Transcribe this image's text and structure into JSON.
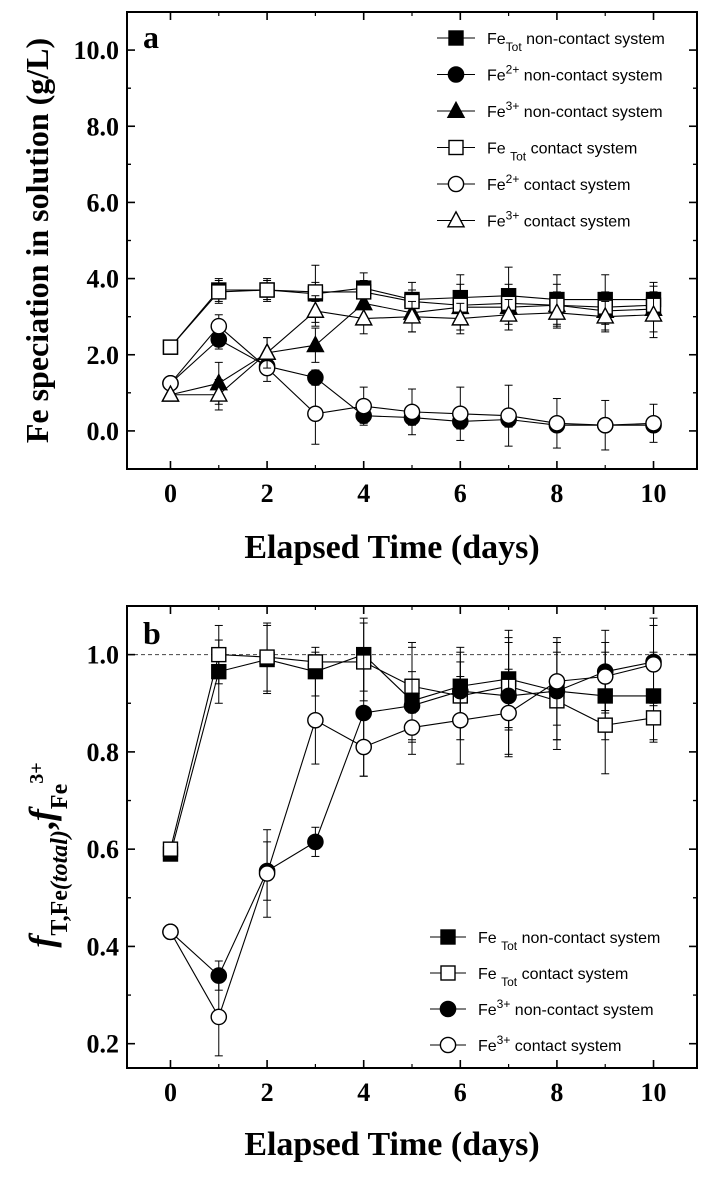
{
  "chart_data": [
    {
      "type": "line",
      "panel_label": "a",
      "xlabel": "Elapsed Time (days)",
      "ylabel": "Fe speciation in solution (g/L)",
      "xlim": [
        -0.9,
        10.9
      ],
      "ylim": [
        -1.0,
        11.0
      ],
      "xticks": [
        0,
        2,
        4,
        6,
        8,
        10
      ],
      "xtick_labels": [
        "0",
        "2",
        "4",
        "6",
        "8",
        "10"
      ],
      "yticks": [
        0,
        2,
        4,
        6,
        8,
        10
      ],
      "ytick_labels": [
        "0.0",
        "2.0",
        "4.0",
        "6.0",
        "8.0",
        "10.0"
      ],
      "legend_position": "top-right",
      "series": [
        {
          "name": "Fe Tot non-contact system",
          "label_parts": [
            "Fe",
            "Tot",
            "non-contact system"
          ],
          "marker": "square",
          "filled": true,
          "x": [
            0,
            1,
            2,
            3,
            4,
            5,
            6,
            7,
            8,
            9,
            10
          ],
          "y": [
            2.2,
            3.7,
            3.7,
            3.6,
            3.75,
            3.45,
            3.5,
            3.55,
            3.45,
            3.45,
            3.45
          ],
          "err": [
            0.0,
            0.3,
            0.3,
            0.75,
            0.4,
            0.45,
            0.6,
            0.75,
            0.65,
            0.65,
            0.45
          ]
        },
        {
          "name": "Fe 2+ non-contact system",
          "label_parts": [
            "Fe",
            "2+",
            "non-contact system"
          ],
          "marker": "circle",
          "filled": true,
          "x": [
            0,
            1,
            2,
            3,
            4,
            5,
            6,
            7,
            8,
            9,
            10
          ],
          "y": [
            1.25,
            2.4,
            1.7,
            1.4,
            0.4,
            0.35,
            0.25,
            0.3,
            0.15,
            0.15,
            0.15
          ],
          "err": [
            0.0,
            0.25,
            0.2,
            0.2,
            0.2,
            0.2,
            0.2,
            0.2,
            0.15,
            0.15,
            0.15
          ]
        },
        {
          "name": "Fe 3+ non-contact system",
          "label_parts": [
            "Fe",
            "3+",
            "non-contact system"
          ],
          "marker": "triangle",
          "filled": true,
          "x": [
            0,
            1,
            2,
            3,
            4,
            5,
            6,
            7,
            8,
            9,
            10
          ],
          "y": [
            0.95,
            1.25,
            2.05,
            2.25,
            3.35,
            3.1,
            3.25,
            3.25,
            3.3,
            3.15,
            3.2
          ],
          "err": [
            0.0,
            0.55,
            0.4,
            0.45,
            0.45,
            0.5,
            0.6,
            0.6,
            0.55,
            0.5,
            0.6
          ]
        },
        {
          "name": "Fe Tot contact system",
          "label_parts": [
            "Fe ",
            "Tot",
            "contact system"
          ],
          "marker": "square",
          "filled": false,
          "x": [
            0,
            1,
            2,
            3,
            4,
            5,
            6,
            7,
            8,
            9,
            10
          ],
          "y": [
            2.2,
            3.65,
            3.7,
            3.65,
            3.65,
            3.4,
            3.3,
            3.35,
            3.3,
            3.25,
            3.3
          ],
          "err": [
            0.0,
            0.3,
            0.25,
            0.25,
            0.3,
            0.3,
            0.35,
            0.35,
            0.35,
            0.35,
            0.35
          ]
        },
        {
          "name": "Fe 2+ contact system",
          "label_parts": [
            "Fe",
            "2+",
            "contact system"
          ],
          "marker": "circle",
          "filled": false,
          "x": [
            0,
            1,
            2,
            3,
            4,
            5,
            6,
            7,
            8,
            9,
            10
          ],
          "y": [
            1.25,
            2.75,
            1.65,
            0.45,
            0.65,
            0.5,
            0.45,
            0.4,
            0.2,
            0.15,
            0.2
          ],
          "err": [
            0.0,
            0.3,
            0.35,
            0.8,
            0.5,
            0.6,
            0.7,
            0.8,
            0.65,
            0.65,
            0.5
          ]
        },
        {
          "name": "Fe 3+ contact system",
          "label_parts": [
            "Fe",
            "3+",
            "contact system"
          ],
          "marker": "triangle",
          "filled": false,
          "x": [
            0,
            1,
            2,
            3,
            4,
            5,
            6,
            7,
            8,
            9,
            10
          ],
          "y": [
            0.95,
            0.95,
            2.05,
            3.15,
            2.95,
            3.0,
            2.95,
            3.05,
            3.1,
            3.0,
            3.05
          ],
          "err": [
            0.0,
            0.4,
            0.4,
            0.4,
            0.4,
            0.4,
            0.4,
            0.4,
            0.4,
            0.4,
            0.6
          ]
        }
      ]
    },
    {
      "type": "line",
      "panel_label": "b",
      "xlabel": "Elapsed Time (days)",
      "ylabel": "f T,Fe (total) , f Fe 3+",
      "ylabel_parts": {
        "f1": "f",
        "sub1": "T,Fe",
        "sub1_italic": "(total)",
        "sep": ",",
        "f2": "f",
        "sub2": "Fe",
        "sup2": "3+"
      },
      "xlim": [
        -0.9,
        10.9
      ],
      "ylim": [
        0.15,
        1.1
      ],
      "xticks": [
        0,
        2,
        4,
        6,
        8,
        10
      ],
      "xtick_labels": [
        "0",
        "2",
        "4",
        "6",
        "8",
        "10"
      ],
      "yticks": [
        0.2,
        0.4,
        0.6,
        0.8,
        1.0
      ],
      "ytick_labels": [
        "0.2",
        "0.4",
        "0.6",
        "0.8",
        "1.0"
      ],
      "reference_line": 1.0,
      "legend_position": "bottom-right",
      "series": [
        {
          "name": "Fe Tot non-contact system",
          "label_parts": [
            "Fe ",
            "Tot",
            "non-contact system"
          ],
          "marker": "square",
          "filled": true,
          "x": [
            0,
            1,
            2,
            3,
            4,
            5,
            6,
            7,
            8,
            9,
            10
          ],
          "y": [
            0.59,
            0.965,
            0.99,
            0.965,
            1.0,
            0.905,
            0.935,
            0.95,
            0.925,
            0.915,
            0.915
          ],
          "err": [
            0.0,
            0.065,
            0.07,
            0.05,
            0.075,
            0.11,
            0.08,
            0.1,
            0.1,
            0.09,
            0.09
          ]
        },
        {
          "name": "Fe Tot contact system",
          "label_parts": [
            "Fe ",
            "Tot",
            "contact system"
          ],
          "marker": "square",
          "filled": false,
          "x": [
            0,
            1,
            2,
            3,
            4,
            5,
            6,
            7,
            8,
            9,
            10
          ],
          "y": [
            0.6,
            1.0,
            0.995,
            0.985,
            0.985,
            0.935,
            0.915,
            0.935,
            0.905,
            0.855,
            0.87
          ],
          "err": [
            0.0,
            0.06,
            0.07,
            0.02,
            0.08,
            0.09,
            0.09,
            0.09,
            0.1,
            0.1,
            0.05
          ]
        },
        {
          "name": "Fe 3+ non-contact system",
          "label_parts": [
            "Fe",
            "3+",
            "non-contact system"
          ],
          "marker": "circle",
          "filled": true,
          "x": [
            0,
            1,
            2,
            3,
            4,
            5,
            6,
            7,
            8,
            9,
            10
          ],
          "y": [
            0.43,
            0.34,
            0.555,
            0.615,
            0.88,
            0.895,
            0.925,
            0.915,
            0.925,
            0.965,
            0.985
          ],
          "err": [
            0.0,
            0.03,
            0.06,
            0.03,
            0.13,
            0.07,
            0.06,
            0.12,
            0.1,
            0.085,
            0.09
          ]
        },
        {
          "name": "Fe 3+ contact system",
          "label_parts": [
            "Fe",
            "3+",
            "contact system"
          ],
          "marker": "circle",
          "filled": false,
          "x": [
            0,
            1,
            2,
            3,
            4,
            5,
            6,
            7,
            8,
            9,
            10
          ],
          "y": [
            0.43,
            0.255,
            0.55,
            0.865,
            0.81,
            0.85,
            0.865,
            0.88,
            0.945,
            0.955,
            0.98
          ],
          "err": [
            0.0,
            0.08,
            0.09,
            0.09,
            0.06,
            0.03,
            0.09,
            0.09,
            0.09,
            0.07,
            0.08
          ]
        }
      ]
    }
  ]
}
